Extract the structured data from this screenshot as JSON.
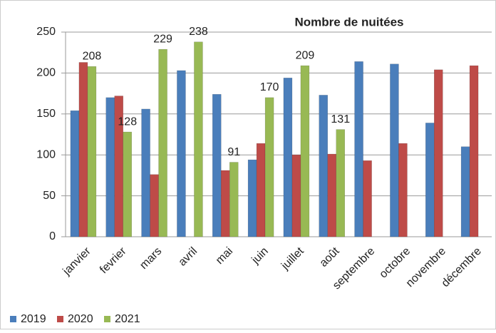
{
  "chart_data": {
    "type": "bar",
    "title": "Nombre de nuitées",
    "categories": [
      "janvier",
      "fevrier",
      "mars",
      "avril",
      "mai",
      "juin",
      "juillet",
      "août",
      "septembre",
      "octobre",
      "novembre",
      "décembre"
    ],
    "series": [
      {
        "name": "2019",
        "color": "#4a7ebb",
        "values": [
          154,
          170,
          156,
          203,
          174,
          94,
          194,
          173,
          214,
          211,
          139,
          110
        ]
      },
      {
        "name": "2020",
        "color": "#be4b48",
        "values": [
          213,
          172,
          76,
          0,
          81,
          114,
          100,
          101,
          93,
          114,
          204,
          209
        ]
      },
      {
        "name": "2021",
        "color": "#98b954",
        "values": [
          208,
          128,
          229,
          238,
          91,
          170,
          209,
          131,
          null,
          null,
          null,
          null
        ]
      }
    ],
    "ylim": [
      0,
      250
    ],
    "yticks": [
      0,
      50,
      100,
      150,
      200,
      250
    ],
    "grid": true,
    "legend": "bottom"
  }
}
